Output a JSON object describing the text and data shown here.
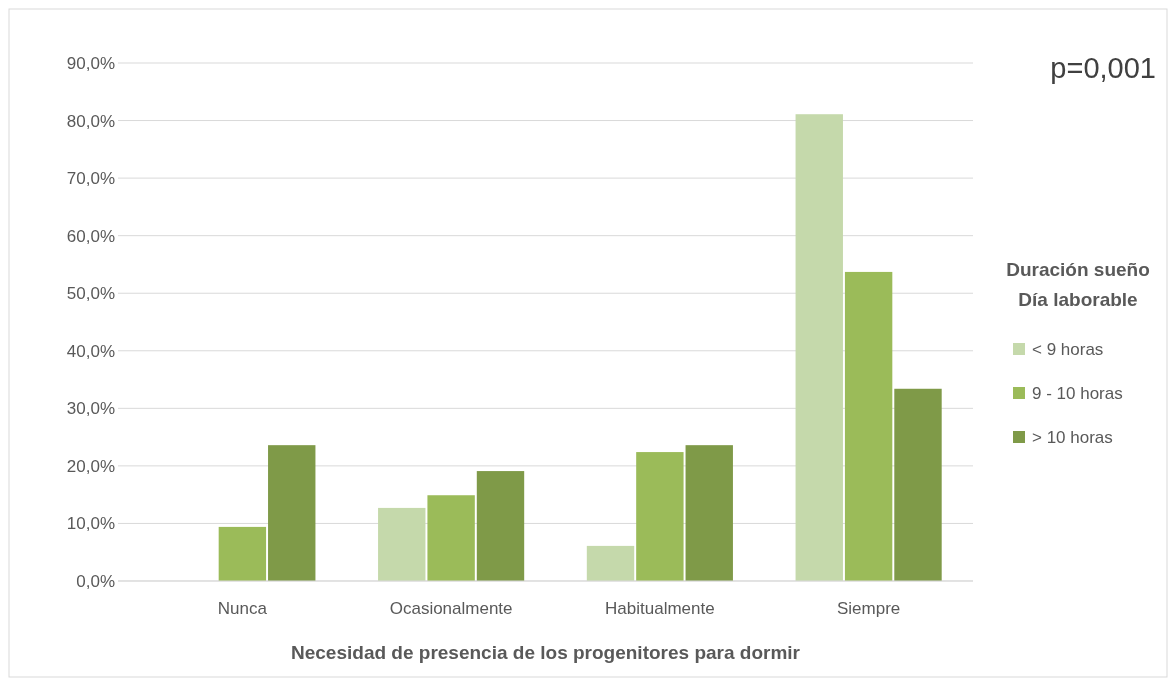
{
  "chart_data": {
    "type": "bar",
    "xlabel": "Necesidad de presencia de los progenitores para dormir",
    "legend_title": "Duración sueño\nDía laborable",
    "annotations": [
      "p=0,001"
    ],
    "categories": [
      "Nunca",
      "Ocasionalmente",
      "Habitualmente",
      "Siempre"
    ],
    "series": [
      {
        "name": "< 9 horas",
        "color": "#c5d9ab",
        "values": [
          0,
          12.7,
          6.1,
          81.1
        ]
      },
      {
        "name": "9 - 10 horas",
        "color": "#9bbb59",
        "values": [
          9.4,
          14.9,
          22.4,
          53.7
        ]
      },
      {
        "name": "> 10 horas",
        "color": "#7f9a48",
        "values": [
          23.6,
          19.1,
          23.6,
          33.4
        ]
      }
    ],
    "ylim": [
      0,
      90
    ],
    "yticks": [
      {
        "value": 0,
        "label": "0,0%"
      },
      {
        "value": 10,
        "label": "10,0%"
      },
      {
        "value": 20,
        "label": "20,0%"
      },
      {
        "value": 30,
        "label": "30,0%"
      },
      {
        "value": 40,
        "label": "40,0%"
      },
      {
        "value": 50,
        "label": "50,0%"
      },
      {
        "value": 60,
        "label": "60,0%"
      },
      {
        "value": 70,
        "label": "70,0%"
      },
      {
        "value": 80,
        "label": "80,0%"
      },
      {
        "value": 90,
        "label": "90,0%"
      }
    ],
    "grid": "y",
    "legend": "right"
  }
}
